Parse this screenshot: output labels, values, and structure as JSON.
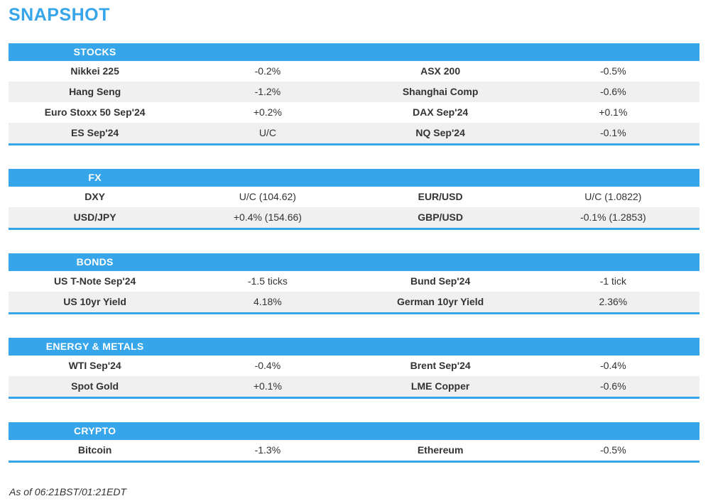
{
  "title": "SNAPSHOT",
  "colors": {
    "accent": "#36a5ea",
    "row_alt": "#f0f0f0",
    "text": "#333333",
    "header_text": "#ffffff"
  },
  "sections": [
    {
      "header": "STOCKS",
      "rows": [
        [
          "Nikkei 225",
          "-0.2%",
          "ASX 200",
          "-0.5%"
        ],
        [
          "Hang Seng",
          "-1.2%",
          "Shanghai Comp",
          "-0.6%"
        ],
        [
          "Euro Stoxx 50 Sep'24",
          "+0.2%",
          "DAX Sep'24",
          "+0.1%"
        ],
        [
          "ES Sep'24",
          "U/C",
          "NQ Sep'24",
          "-0.1%"
        ]
      ]
    },
    {
      "header": "FX",
      "rows": [
        [
          "DXY",
          "U/C (104.62)",
          "EUR/USD",
          "U/C (1.0822)"
        ],
        [
          "USD/JPY",
          "+0.4% (154.66)",
          "GBP/USD",
          "-0.1% (1.2853)"
        ]
      ]
    },
    {
      "header": "BONDS",
      "rows": [
        [
          "US T-Note Sep'24",
          "-1.5 ticks",
          "Bund Sep'24",
          "-1 tick"
        ],
        [
          "US 10yr Yield",
          "4.18%",
          "German 10yr Yield",
          "2.36%"
        ]
      ]
    },
    {
      "header": "ENERGY & METALS",
      "rows": [
        [
          "WTI Sep'24",
          "-0.4%",
          "Brent Sep'24",
          "-0.4%"
        ],
        [
          "Spot Gold",
          "+0.1%",
          "LME Copper",
          "-0.6%"
        ]
      ]
    },
    {
      "header": "CRYPTO",
      "rows": [
        [
          "Bitcoin",
          "-1.3%",
          "Ethereum",
          "-0.5%"
        ]
      ]
    }
  ],
  "footer": {
    "as_of": "As of 06:21BST/01:21EDT"
  }
}
